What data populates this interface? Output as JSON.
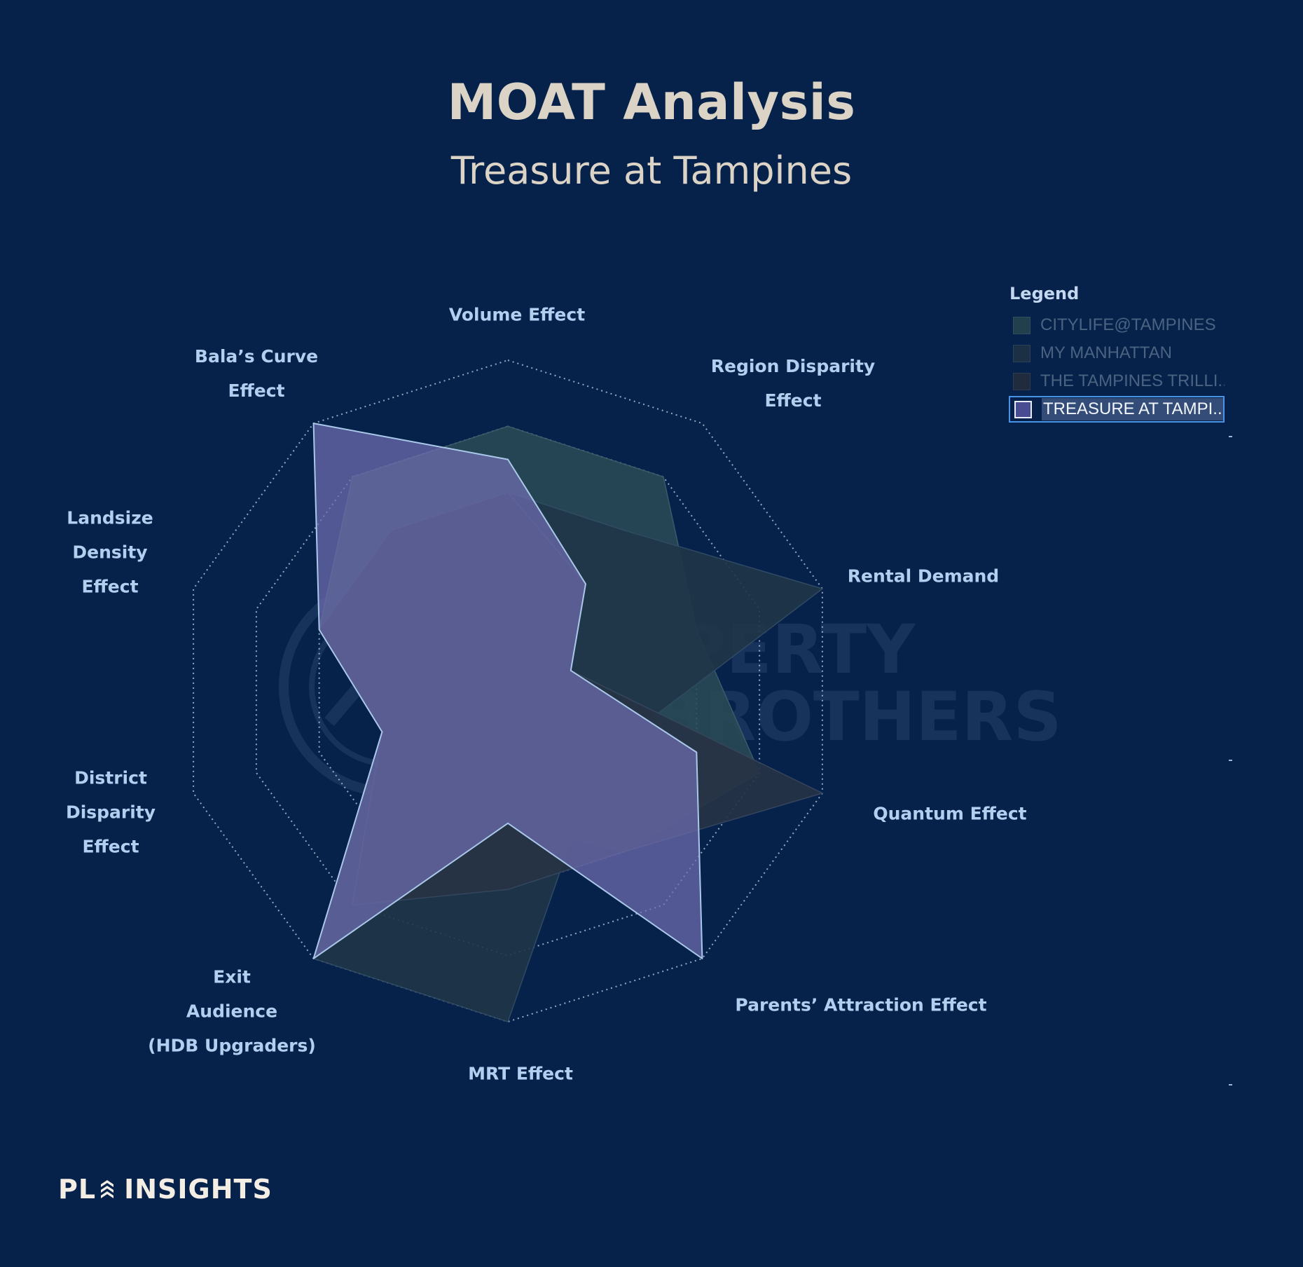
{
  "page": {
    "title": "MOAT Analysis",
    "subtitle": "Treasure at Tampines",
    "brand": {
      "pl": "PL",
      "insights": "INSIGHTS"
    },
    "watermark": "PROPERTY LIMBROTHERS Real Estate With Integrity"
  },
  "legend": {
    "title": "Legend",
    "items": [
      {
        "label": "CITYLIFE@TAMPINES",
        "selected": false
      },
      {
        "label": "MY MANHATTAN",
        "selected": false
      },
      {
        "label": "THE TAMPINES TRILLI...",
        "selected": false
      },
      {
        "label": "TREASURE AT TAMPI...",
        "selected": true
      }
    ]
  },
  "axis_labels": {
    "volume": "Volume Effect",
    "region_1": "Region Disparity",
    "region_2": "Effect",
    "rental": "Rental Demand",
    "quantum": "Quantum Effect",
    "parents": "Parents’ Attraction Effect",
    "mrt": "MRT Effect",
    "exit_1": "Exit",
    "exit_2": "Audience",
    "exit_3": "(HDB Upgraders)",
    "district_1": "District",
    "district_2": "Disparity",
    "district_3": "Effect",
    "landsize_1": "Landsize",
    "landsize_2": "Density",
    "landsize_3": "Effect",
    "bala_1": "Bala’s Curve",
    "bala_2": "Effect"
  },
  "chart_data": {
    "type": "radar",
    "title": "MOAT Analysis",
    "subtitle": "Treasure at Tampines",
    "axes": [
      "Volume Effect",
      "Region Disparity Effect",
      "Rental Demand",
      "Quantum Effect",
      "Parents’ Attraction Effect",
      "MRT Effect",
      "Exit Audience (HDB Upgraders)",
      "District Disparity Effect",
      "Landsize Density Effect",
      "Bala’s Curve Effect"
    ],
    "range": [
      0,
      5
    ],
    "rings": 5,
    "grid": "dotted",
    "legend_position": "top-right",
    "series": [
      {
        "name": "CITYLIFE@TAMPINES",
        "values": [
          4,
          4,
          3,
          4,
          3,
          2,
          5,
          2,
          3,
          4
        ],
        "fill": "#2a4a55",
        "opacity": 0.88,
        "stroke": "#3b5a68"
      },
      {
        "name": "MY MANHATTAN",
        "values": [
          3,
          3,
          5,
          2,
          2,
          5,
          5,
          2,
          3,
          3
        ],
        "fill": "#1f3548",
        "opacity": 0.9,
        "stroke": "#2f4a62"
      },
      {
        "name": "THE TAMPINES TRILLIUM",
        "values": [
          3,
          2,
          1,
          5,
          3,
          3,
          4,
          2,
          3,
          3
        ],
        "fill": "#263345",
        "opacity": 0.92,
        "stroke": "#34455d"
      },
      {
        "name": "TREASURE AT TAMPINES",
        "values": [
          3.5,
          2,
          1,
          3,
          5,
          2,
          5,
          2,
          3,
          5
        ],
        "fill": "#6f6eb0",
        "opacity": 0.72,
        "stroke": "#aac8ea"
      }
    ]
  },
  "colors": {
    "background": "#06224b",
    "title": "#dcd3c7",
    "axis_label": "#b3cff0",
    "grid": "#c6d6ea",
    "legend_selected_border": "#4b93e6"
  }
}
